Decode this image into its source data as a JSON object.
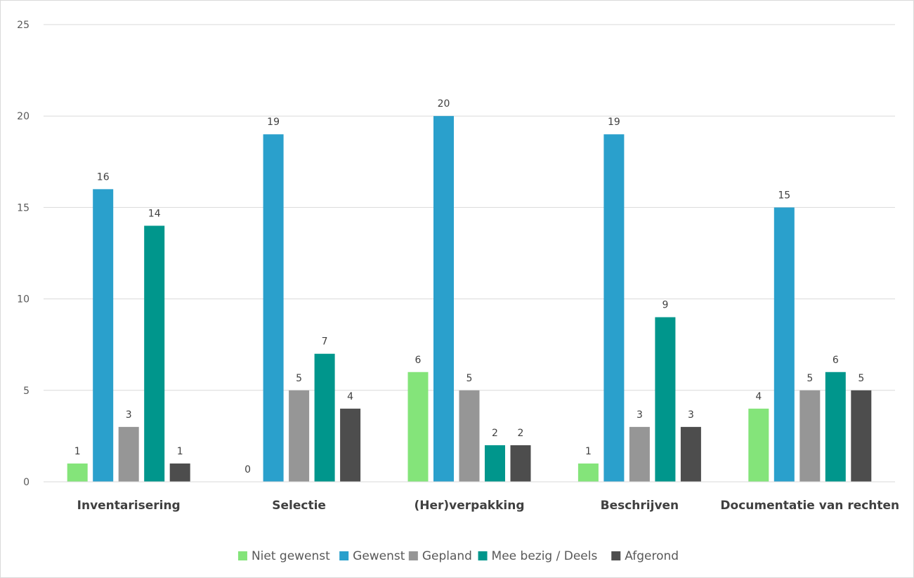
{
  "chart_data": {
    "type": "bar",
    "categories": [
      "Inventarisering",
      "Selectie",
      "(Her)verpakking",
      "Beschrijven",
      "Documentatie van rechten"
    ],
    "series": [
      {
        "name": "Niet gewenst",
        "color": "#84e47a",
        "values": [
          1,
          0,
          6,
          1,
          4
        ]
      },
      {
        "name": "Gewenst",
        "color": "#2aa0cc",
        "values": [
          16,
          19,
          20,
          19,
          15
        ]
      },
      {
        "name": "Gepland",
        "color": "#969696",
        "values": [
          3,
          5,
          5,
          3,
          5
        ]
      },
      {
        "name": "Mee bezig / Deels",
        "color": "#00968c",
        "values": [
          14,
          7,
          2,
          9,
          6
        ]
      },
      {
        "name": "Afgerond",
        "color": "#4d4d4d",
        "values": [
          1,
          4,
          2,
          3,
          5
        ]
      }
    ],
    "ylim": [
      0,
      25
    ],
    "yticks": [
      0,
      5,
      10,
      15,
      20,
      25
    ],
    "grid": true,
    "legend_position": "bottom",
    "title": "",
    "xlabel": "",
    "ylabel": ""
  }
}
